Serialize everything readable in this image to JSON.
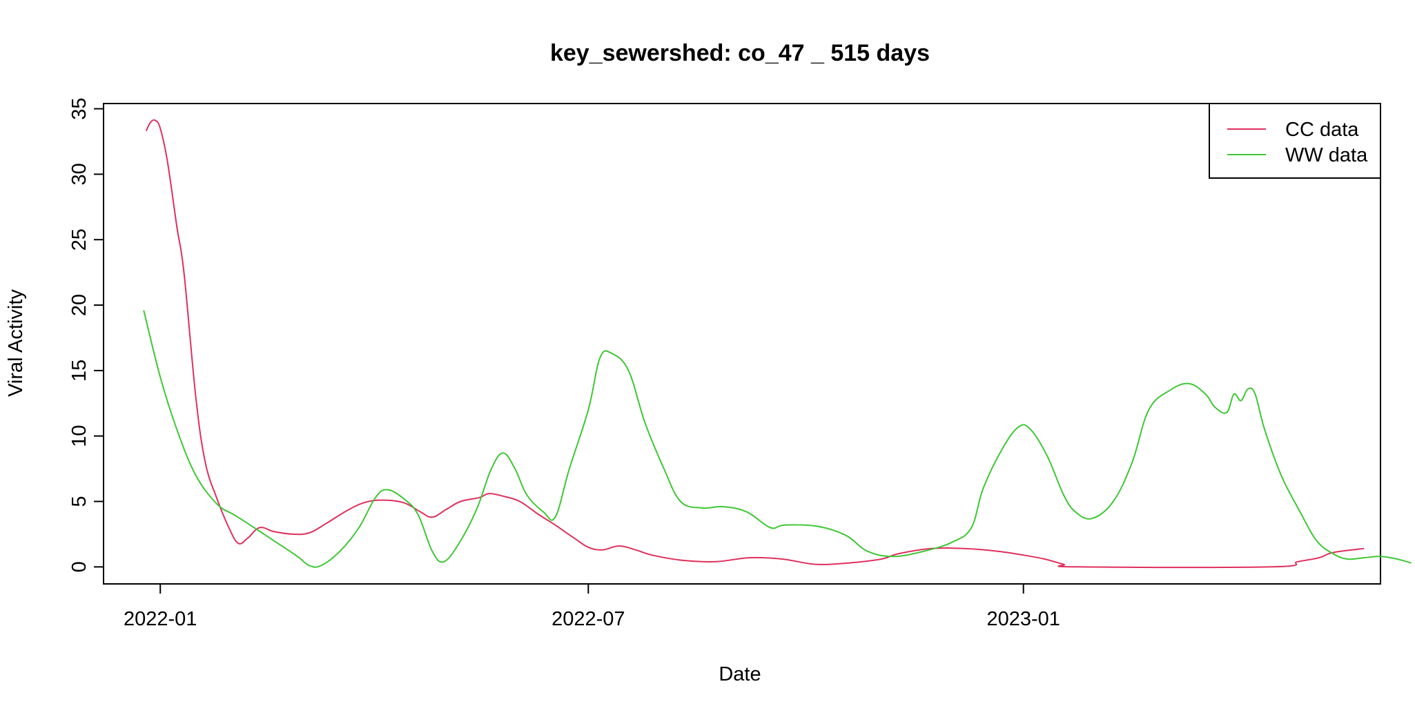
{
  "chart_data": {
    "type": "line",
    "title": "key_sewershed:  co_47 _ 515  days",
    "xlabel": "Date",
    "ylabel": "Viral Activity",
    "xlim": [
      "2021-12-08",
      "2023-06-01"
    ],
    "ylim": [
      -1.3,
      35.4
    ],
    "x_ticks": [
      {
        "date": "2022-01-01",
        "label": "2022-01"
      },
      {
        "date": "2022-07-01",
        "label": "2022-07"
      },
      {
        "date": "2023-01-01",
        "label": "2023-01"
      }
    ],
    "y_ticks": [
      0,
      5,
      10,
      15,
      20,
      25,
      30,
      35
    ],
    "grid": false,
    "legend": {
      "position": "top-right",
      "entries": [
        "CC data",
        "WW data"
      ]
    },
    "series": [
      {
        "name": "CC data",
        "color": "#DF2F5C",
        "points": [
          [
            "2021-12-26",
            33.3
          ],
          [
            "2021-12-28",
            34.0
          ],
          [
            "2021-12-30",
            34.1
          ],
          [
            "2022-01-01",
            33.5
          ],
          [
            "2022-01-04",
            31.0
          ],
          [
            "2022-01-08",
            26.0
          ],
          [
            "2022-01-11",
            22.5
          ],
          [
            "2022-01-16",
            13.0
          ],
          [
            "2022-01-20",
            8.0
          ],
          [
            "2022-01-25",
            5.2
          ],
          [
            "2022-01-30",
            3.0
          ],
          [
            "2022-02-03",
            1.8
          ],
          [
            "2022-02-07",
            2.2
          ],
          [
            "2022-02-12",
            3.0
          ],
          [
            "2022-02-18",
            2.7
          ],
          [
            "2022-02-26",
            2.5
          ],
          [
            "2022-03-05",
            2.6
          ],
          [
            "2022-03-12",
            3.3
          ],
          [
            "2022-03-20",
            4.2
          ],
          [
            "2022-03-28",
            4.9
          ],
          [
            "2022-04-05",
            5.1
          ],
          [
            "2022-04-14",
            4.9
          ],
          [
            "2022-04-21",
            4.2
          ],
          [
            "2022-04-26",
            3.8
          ],
          [
            "2022-05-02",
            4.4
          ],
          [
            "2022-05-08",
            5.0
          ],
          [
            "2022-05-16",
            5.3
          ],
          [
            "2022-05-20",
            5.6
          ],
          [
            "2022-05-26",
            5.4
          ],
          [
            "2022-06-02",
            5.0
          ],
          [
            "2022-06-10",
            4.0
          ],
          [
            "2022-06-17",
            3.2
          ],
          [
            "2022-06-25",
            2.2
          ],
          [
            "2022-07-01",
            1.5
          ],
          [
            "2022-07-07",
            1.3
          ],
          [
            "2022-07-14",
            1.6
          ],
          [
            "2022-07-21",
            1.3
          ],
          [
            "2022-07-28",
            0.9
          ],
          [
            "2022-08-10",
            0.5
          ],
          [
            "2022-08-24",
            0.4
          ],
          [
            "2022-09-07",
            0.7
          ],
          [
            "2022-09-21",
            0.6
          ],
          [
            "2022-10-05",
            0.2
          ],
          [
            "2022-10-19",
            0.3
          ],
          [
            "2022-11-02",
            0.6
          ],
          [
            "2022-11-09",
            1.0
          ],
          [
            "2022-11-23",
            1.4
          ],
          [
            "2022-12-07",
            1.4
          ],
          [
            "2022-12-21",
            1.2
          ],
          [
            "2023-01-01",
            0.9
          ],
          [
            "2023-01-10",
            0.6
          ],
          [
            "2023-01-18",
            0.2
          ],
          [
            "2023-01-24",
            0.0
          ],
          [
            "2023-04-16",
            0.0
          ],
          [
            "2023-04-27",
            0.4
          ],
          [
            "2023-05-06",
            0.7
          ],
          [
            "2023-05-12",
            1.1
          ],
          [
            "2023-05-25",
            1.4
          ]
        ]
      },
      {
        "name": "WW data",
        "color": "#3DC733",
        "points": [
          [
            "2021-12-25",
            19.6
          ],
          [
            "2022-01-01",
            14.5
          ],
          [
            "2022-01-08",
            10.5
          ],
          [
            "2022-01-16",
            7.0
          ],
          [
            "2022-01-25",
            4.8
          ],
          [
            "2022-02-01",
            4.0
          ],
          [
            "2022-02-08",
            3.2
          ],
          [
            "2022-02-18",
            2.0
          ],
          [
            "2022-02-28",
            0.8
          ],
          [
            "2022-03-05",
            0.1
          ],
          [
            "2022-03-10",
            0.1
          ],
          [
            "2022-03-18",
            1.2
          ],
          [
            "2022-03-26",
            3.0
          ],
          [
            "2022-04-02",
            5.3
          ],
          [
            "2022-04-07",
            5.9
          ],
          [
            "2022-04-14",
            5.2
          ],
          [
            "2022-04-20",
            4.0
          ],
          [
            "2022-04-26",
            1.2
          ],
          [
            "2022-05-01",
            0.4
          ],
          [
            "2022-05-08",
            2.0
          ],
          [
            "2022-05-15",
            4.5
          ],
          [
            "2022-05-21",
            7.5
          ],
          [
            "2022-05-26",
            8.7
          ],
          [
            "2022-05-31",
            7.5
          ],
          [
            "2022-06-05",
            5.5
          ],
          [
            "2022-06-12",
            4.2
          ],
          [
            "2022-06-17",
            3.8
          ],
          [
            "2022-06-23",
            7.5
          ],
          [
            "2022-07-01",
            12.0
          ],
          [
            "2022-07-06",
            16.0
          ],
          [
            "2022-07-11",
            16.3
          ],
          [
            "2022-07-18",
            15.0
          ],
          [
            "2022-07-25",
            11.0
          ],
          [
            "2022-08-02",
            7.5
          ],
          [
            "2022-08-09",
            5.0
          ],
          [
            "2022-08-18",
            4.5
          ],
          [
            "2022-08-27",
            4.6
          ],
          [
            "2022-09-06",
            4.2
          ],
          [
            "2022-09-16",
            3.0
          ],
          [
            "2022-09-22",
            3.2
          ],
          [
            "2022-10-06",
            3.1
          ],
          [
            "2022-10-18",
            2.4
          ],
          [
            "2022-10-27",
            1.2
          ],
          [
            "2022-11-07",
            0.8
          ],
          [
            "2022-11-20",
            1.2
          ],
          [
            "2022-12-02",
            1.9
          ],
          [
            "2022-12-10",
            3.0
          ],
          [
            "2022-12-15",
            6.0
          ],
          [
            "2022-12-23",
            9.0
          ],
          [
            "2022-12-30",
            10.7
          ],
          [
            "2023-01-04",
            10.5
          ],
          [
            "2023-01-11",
            8.5
          ],
          [
            "2023-01-18",
            5.5
          ],
          [
            "2023-01-23",
            4.2
          ],
          [
            "2023-01-30",
            3.7
          ],
          [
            "2023-02-08",
            5.0
          ],
          [
            "2023-02-16",
            8.0
          ],
          [
            "2023-02-23",
            12.0
          ],
          [
            "2023-03-04",
            13.5
          ],
          [
            "2023-03-12",
            14.0
          ],
          [
            "2023-03-19",
            13.2
          ],
          [
            "2023-03-23",
            12.2
          ],
          [
            "2023-03-28",
            11.8
          ],
          [
            "2023-03-31",
            13.2
          ],
          [
            "2023-04-03",
            12.7
          ],
          [
            "2023-04-06",
            13.6
          ],
          [
            "2023-04-09",
            13.2
          ],
          [
            "2023-04-13",
            10.5
          ],
          [
            "2023-04-20",
            7.0
          ],
          [
            "2023-04-28",
            4.2
          ],
          [
            "2023-05-05",
            2.0
          ],
          [
            "2023-05-12",
            1.0
          ],
          [
            "2023-05-18",
            0.6
          ],
          [
            "2023-05-25",
            0.7
          ],
          [
            "2023-06-01",
            0.8
          ],
          [
            "2023-06-08",
            0.6
          ],
          [
            "2023-06-14",
            0.3
          ]
        ]
      }
    ]
  }
}
